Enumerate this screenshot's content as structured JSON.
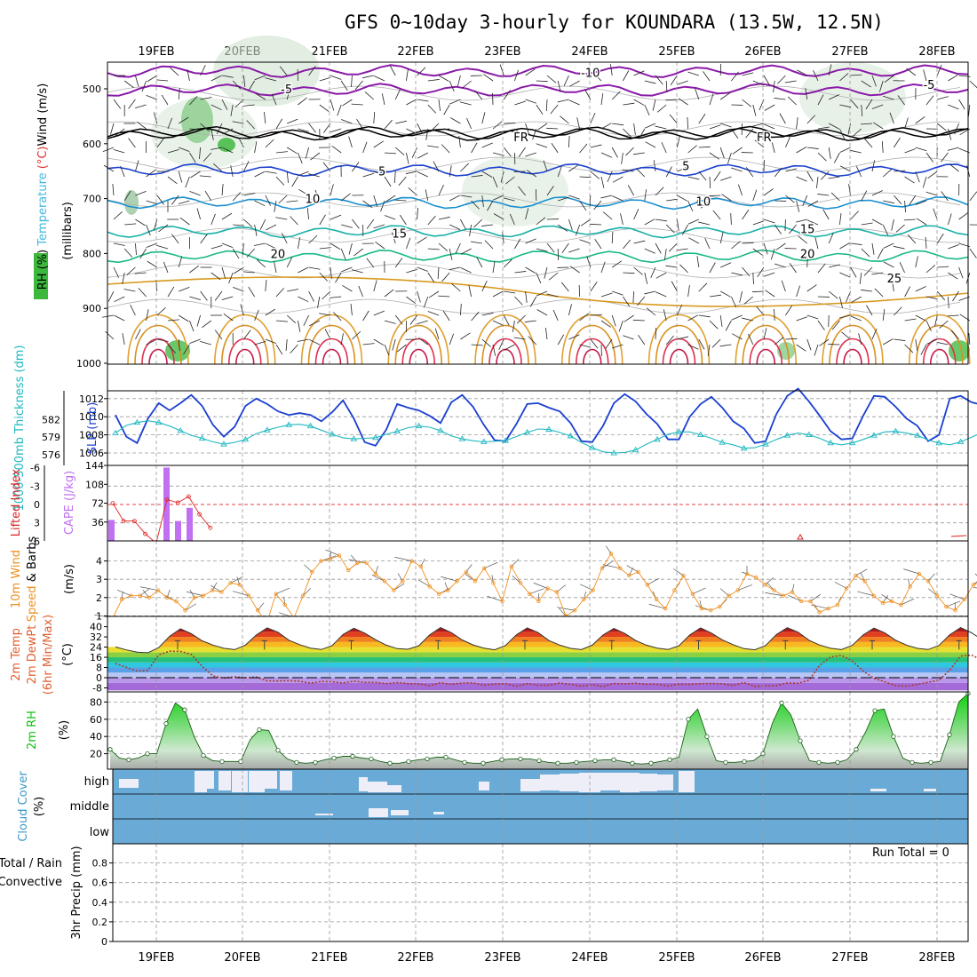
{
  "title": "GFS 0~10day 3-hourly for KOUNDARA (13.5W, 12.5N)",
  "dates": [
    "19FEB",
    "20FEB",
    "21FEB",
    "22FEB",
    "23FEB",
    "24FEB",
    "25FEB",
    "26FEB",
    "27FEB",
    "28FEB"
  ],
  "colors": {
    "temperature_line": "#e06030",
    "rh_fill": "#2faa2f",
    "cloud": "#6aaad6",
    "slp": "#1a3fd0",
    "thickness": "#20b8c0",
    "cape": "#c070f0",
    "lifted_index": "#e02020",
    "wind10": "#f09020",
    "rh2m": "#10c010"
  },
  "chart_data": [
    {
      "type": "heatmap",
      "panel": "upper-air",
      "ylabel_parts": [
        "RH (%)",
        "Temperature",
        " (°C)",
        "Wind (m/s)"
      ],
      "ylabel_units": "(millibars)",
      "yticks": [
        500,
        600,
        700,
        800,
        900,
        1000
      ],
      "ylim": [
        1000,
        450
      ],
      "isotherm_labels": [
        {
          "label": "-10",
          "x": 5.0,
          "p": 470
        },
        {
          "label": "-5",
          "x": 1.5,
          "p": 500
        },
        {
          "label": "-5",
          "x": 8.9,
          "p": 492
        },
        {
          "label": "FR",
          "x": 4.2,
          "p": 587
        },
        {
          "label": "FR",
          "x": 7.0,
          "p": 587
        },
        {
          "label": "5",
          "x": 2.6,
          "p": 650
        },
        {
          "label": "5",
          "x": 6.1,
          "p": 640
        },
        {
          "label": "10",
          "x": 1.8,
          "p": 700
        },
        {
          "label": "10",
          "x": 6.3,
          "p": 705
        },
        {
          "label": "15",
          "x": 2.8,
          "p": 763
        },
        {
          "label": "15",
          "x": 7.5,
          "p": 755
        },
        {
          "label": "20",
          "x": 1.4,
          "p": 800
        },
        {
          "label": "20",
          "x": 7.5,
          "p": 800
        },
        {
          "label": "25",
          "x": 8.5,
          "p": 845
        }
      ]
    },
    {
      "type": "line",
      "panel": "slp-thickness",
      "ylabel_left": "1000-500mb Thickness (dm)",
      "ylabel_right": "SLP (mb)",
      "yticks_left": [
        576,
        579,
        582
      ],
      "yticks_right": [
        1006,
        1008,
        1010,
        1012
      ],
      "series": [
        {
          "name": "SLP (mb)",
          "values": [
            1010.2,
            1007.8,
            1007.1,
            1009.8,
            1011.5,
            1010.7,
            1011.5,
            1012.4,
            1011.2,
            1009.1,
            1007.8,
            1008.9,
            1011.2,
            1012.0,
            1011.4,
            1010.6,
            1010.2,
            1010.4,
            1010.2,
            1009.5,
            1010.5,
            1011.8,
            1009.8,
            1007.2,
            1006.8,
            1008.6,
            1011.4,
            1011.0,
            1010.7,
            1010.1,
            1009.3,
            1011.6,
            1012.4,
            1011.1,
            1009.1,
            1007.4,
            1007.3,
            1009.2,
            1011.4,
            1011.5,
            1011.0,
            1010.6,
            1009.3,
            1007.3,
            1007.2,
            1009.0,
            1011.5,
            1012.5,
            1011.7,
            1010.3,
            1009.2,
            1007.5,
            1007.5,
            1010.0,
            1011.4,
            1012.2,
            1011.0,
            1009.5,
            1008.7,
            1007.1,
            1007.3,
            1010.3,
            1012.3,
            1013.1,
            1011.7,
            1010.1,
            1008.4,
            1007.5,
            1007.6,
            1010.1,
            1012.3,
            1012.2,
            1011.1,
            1009.8,
            1009.0,
            1007.3,
            1008.0,
            1012.0,
            1012.3,
            1011.6,
            1011.3,
            1010.8,
            1010.0,
            1008.7,
            1009.4,
            1011.3,
            1012.1,
            1010.9,
            1008.2,
            1006.6,
            1006.2,
            1008.9,
            1011.0,
            1009.6,
            1009.4
          ]
        },
        {
          "name": "1000-500mb Thickness (dm)",
          "values": [
            579.7,
            581.0,
            581.5,
            581.8,
            581.5,
            580.9,
            580.1,
            579.3,
            578.8,
            578.2,
            577.8,
            578.1,
            578.6,
            579.6,
            580.2,
            580.7,
            581.1,
            581.2,
            580.9,
            580.2,
            579.5,
            578.9,
            578.7,
            578.8,
            578.9,
            579.5,
            580.0,
            580.6,
            580.9,
            580.7,
            580.1,
            579.2,
            578.7,
            578.4,
            578.2,
            578.3,
            578.4,
            579.1,
            579.8,
            580.4,
            580.3,
            579.8,
            579.2,
            578.1,
            577.2,
            576.5,
            576.3,
            576.4,
            576.8,
            577.8,
            578.6,
            579.5,
            579.9,
            579.9,
            579.4,
            578.8,
            578.1,
            577.7,
            577.1,
            577.2,
            577.8,
            578.6,
            579.3,
            579.7,
            579.4,
            578.8,
            578.0,
            577.7,
            578.0,
            578.6,
            579.3,
            579.9,
            580.0,
            579.7,
            579.3,
            578.5,
            578.0,
            577.7,
            578.2,
            579.0,
            579.8,
            580.7,
            581.5,
            581.8,
            581.1,
            580.3,
            579.6,
            579.2,
            579.4,
            580.1,
            581.2,
            582.1,
            582.9,
            582.4,
            581.0,
            579.9,
            579.3,
            578.9,
            579.2
          ]
        }
      ]
    },
    {
      "type": "bar",
      "panel": "cape-li",
      "ylabel_left": "Lifted Index",
      "ylabel_right": "CAPE (J/kg)",
      "yticks_left": [
        -6,
        -3,
        0,
        3,
        6
      ],
      "yticks_right": [
        36,
        72,
        108,
        144
      ],
      "series": [
        {
          "name": "CAPE (J/kg)",
          "x": [
            0.0,
            0.6,
            0.74,
            0.87
          ],
          "values": [
            40,
            140,
            38,
            63
          ]
        },
        {
          "name": "Lifted Index",
          "x": [
            0.0,
            0.12,
            0.25,
            0.37,
            0.5,
            0.62,
            0.75,
            0.87,
            1.0,
            1.12
          ],
          "values": [
            -0.2,
            2.7,
            2.7,
            4.8,
            6.3,
            -0.8,
            -0.3,
            -1.3,
            1.6,
            3.8
          ]
        }
      ]
    },
    {
      "type": "line",
      "panel": "wind10m",
      "ylabel_parts": [
        "10m Wind",
        "Speed",
        " & Barbs",
        "(m/s)"
      ],
      "yticks": [
        1,
        2,
        3,
        4
      ],
      "ylim": [
        0.4,
        4.7
      ],
      "series": [
        {
          "name": "10m Wind Speed",
          "values": [
            0.9,
            1.9,
            2.1,
            2.1,
            2.0,
            2.4,
            2.0,
            1.8,
            1.3,
            2.0,
            2.1,
            2.4,
            2.3,
            2.8,
            2.7,
            2.1,
            1.3,
            0.6,
            2.2,
            1.6,
            0.9,
            2.1,
            3.4,
            4.0,
            4.1,
            4.3,
            3.5,
            3.9,
            3.9,
            3.3,
            2.9,
            2.4,
            2.9,
            4.0,
            3.7,
            2.6,
            2.2,
            2.4,
            2.9,
            3.4,
            2.9,
            3.6,
            2.8,
            1.8,
            3.7,
            2.8,
            2.2,
            1.8,
            2.5,
            2.3,
            1.0,
            1.3,
            1.9,
            2.4,
            3.6,
            4.4,
            3.6,
            3.2,
            3.4,
            2.7,
            1.9,
            1.4,
            2.4,
            3.2,
            2.2,
            1.4,
            1.3,
            1.5,
            2.1,
            2.4,
            3.3,
            3.1,
            2.7,
            2.4,
            2.1,
            2.3,
            1.8,
            1.8,
            1.2,
            1.4,
            1.6,
            2.5,
            3.2,
            2.9,
            2.1,
            1.7,
            1.8,
            1.6,
            2.6,
            3.3,
            2.9,
            2.1,
            1.5,
            1.3,
            1.9,
            2.7,
            2.9,
            2.4,
            1.8
          ]
        }
      ]
    },
    {
      "type": "area",
      "panel": "temp2m",
      "ylabel_parts": [
        "2m Temp",
        "2m DewPt",
        "(6hr Min/Max)",
        "(°C)"
      ],
      "yticks": [
        -8,
        0,
        8,
        16,
        24,
        32,
        40
      ],
      "ylim": [
        -10,
        42
      ],
      "series": [
        {
          "name": "2m Temp",
          "values": [
            24.1,
            21.8,
            20.1,
            19.6,
            23.6,
            32.5,
            38.3,
            34.5,
            28.9,
            25.6,
            23.1,
            22.0,
            25.6,
            33.5,
            39.1,
            35.7,
            29.4,
            25.9,
            23.2,
            22.1,
            25.2,
            33.9,
            38.8,
            35.0,
            29.8,
            25.5,
            22.8,
            22.3,
            25.1,
            33.6,
            39.3,
            35.3,
            29.6,
            25.7,
            23.2,
            21.9,
            25.3,
            33.6,
            39.1,
            35.4,
            29.1,
            25.6,
            23.0,
            22.0,
            25.5,
            33.5,
            38.6,
            34.7,
            29.2,
            25.5,
            23.2,
            22.1,
            25.0,
            33.5,
            39.0,
            35.0,
            29.7,
            25.9,
            22.8,
            21.9,
            25.2,
            33.9,
            39.2,
            35.7,
            29.4,
            25.6,
            23.1,
            22.0,
            25.4,
            33.5,
            38.9,
            35.1,
            29.4,
            25.6,
            23.0,
            22.1,
            25.3,
            33.7,
            39.3,
            35.2,
            29.8,
            25.9,
            22.8,
            22.1,
            25.2,
            33.9,
            39.1,
            35.3,
            29.0,
            25.8,
            23.2,
            21.9,
            25.4,
            33.6,
            38.8,
            34.8,
            29.6,
            25.2,
            21.5
          ]
        },
        {
          "name": "2m DewPt",
          "values": [
            11.1,
            8.1,
            5.3,
            5.8,
            18.0,
            20.8,
            20.6,
            18.2,
            8.9,
            1.3,
            -0.3,
            0.7,
            -0.1,
            0.5,
            -2.5,
            -2.6,
            -2.4,
            -2.8,
            -4.3,
            -2.9,
            -3.2,
            -4.2,
            -2.7,
            -3.7,
            -3.7,
            -4.7,
            -3.8,
            -4.7,
            -4.9,
            -6.3,
            -4.0,
            -5.2,
            -4.2,
            -4.1,
            -6.0,
            -5.0,
            -4.8,
            -6.7,
            -4.7,
            -5.9,
            -5.9,
            -4.2,
            -5.4,
            -6.6,
            -5.6,
            -6.9,
            -4.5,
            -4.8,
            -4.4,
            -5.2,
            -5.2,
            -6.5,
            -5.1,
            -5.3,
            -4.7,
            -4.5,
            -4.8,
            -6.1,
            -3.8,
            -6.9,
            -6.4,
            -6.2,
            -4.2,
            -4.4,
            -2.0,
            9.8,
            16.2,
            17.5,
            13.0,
            5.2,
            -0.5,
            -3.3,
            -6.3,
            -6.7,
            -5.3,
            -3.6,
            -2.0,
            6.0,
            16.9,
            17.8,
            13.5,
            5.3,
            -3.7,
            -5.2,
            -3.8,
            -2.0,
            -1.5,
            3.7,
            15.8,
            18.0,
            12.8,
            3.5,
            -3.7,
            -4.6,
            -6.8,
            -8.2,
            3.4,
            14.8,
            21.2
          ]
        }
      ]
    },
    {
      "type": "area",
      "panel": "rh2m",
      "ylabel_parts": [
        "2m RH",
        "(%)"
      ],
      "yticks": [
        20,
        40,
        60,
        80
      ],
      "ylim": [
        2,
        95
      ],
      "series": [
        {
          "name": "2m RH",
          "values": [
            25,
            15,
            13,
            15,
            20,
            20,
            55,
            79,
            71,
            40,
            18,
            12,
            11,
            11,
            11,
            36,
            48,
            47,
            24,
            14,
            10,
            9,
            10,
            13,
            15,
            17,
            17,
            15,
            14,
            11,
            9,
            9,
            11,
            13,
            14,
            16,
            16,
            13,
            10,
            9,
            9,
            11,
            13,
            14,
            14,
            14,
            12,
            10,
            9,
            9,
            10,
            11,
            12,
            13,
            13,
            11,
            9,
            8,
            9,
            11,
            13,
            16,
            60,
            72,
            40,
            12,
            10,
            10,
            11,
            12,
            20,
            55,
            79,
            65,
            35,
            12,
            10,
            9,
            10,
            13,
            25,
            45,
            70,
            72,
            40,
            15,
            10,
            9,
            10,
            11,
            42,
            80,
            90
          ]
        }
      ]
    },
    {
      "type": "heatmap",
      "panel": "cloud-cover",
      "ylabel_parts": [
        "Cloud Cover",
        "(%)"
      ],
      "levels": [
        "high",
        "middle",
        "low"
      ]
    },
    {
      "type": "bar",
      "panel": "precip",
      "ylabel_parts": [
        "Total / Rain",
        "Convective",
        "3hr Precip (mm)"
      ],
      "yticks": [
        0,
        0.2,
        0.4,
        0.6,
        0.8
      ],
      "ylim": [
        0,
        0.95
      ],
      "run_total": "Run Total = 0",
      "values": []
    }
  ]
}
